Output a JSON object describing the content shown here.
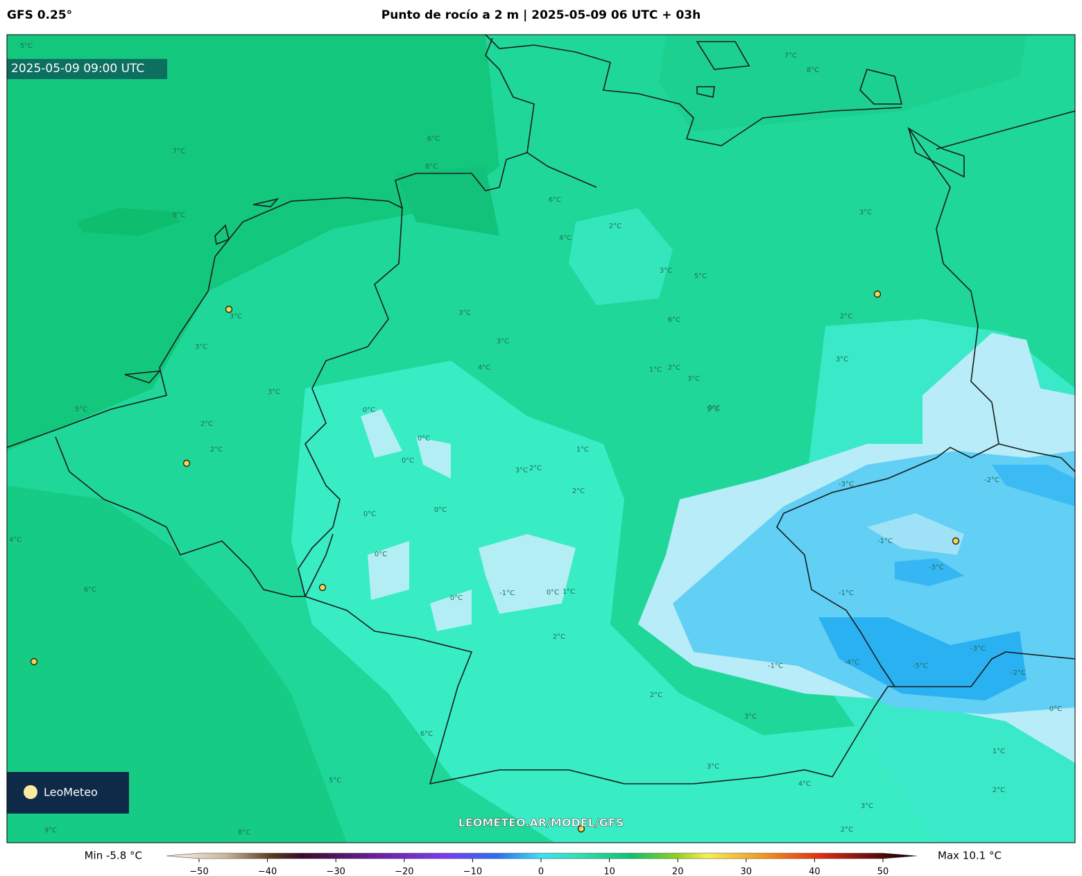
{
  "header": {
    "left": "GFS 0.25°",
    "title": "Punto de rocío a 2 m | 2025-05-09 06 UTC + 03h"
  },
  "map": {
    "valid_time": "2025-05-09 09:00 UTC",
    "watermark": "LEOMETEO.AR/MODEL/GFS",
    "logo": "LeoMeteo",
    "contour_labels": [
      "5°C",
      "7°C",
      "8°C",
      "6°C",
      "7°C",
      "8°C",
      "8°C",
      "6°C",
      "4°C",
      "2°C",
      "3°C",
      "5°C",
      "3°C",
      "2°C",
      "3°C",
      "3°C",
      "3°C",
      "3°C",
      "4°C",
      "6°C",
      "1°C",
      "2°C",
      "3°C",
      "5°C",
      "3°C",
      "3°C",
      "2°C",
      "0°C",
      "2°C",
      "5°C",
      "0°C",
      "0°C",
      "0°C",
      "1°C",
      "2°C",
      "3°C",
      "2°C",
      "0°C",
      "0°C",
      "0°C",
      "-1°C",
      "0°C",
      "1°C",
      "2°C",
      "-3°C",
      "-2°C",
      "-1°C",
      "-3°C",
      "-1°C",
      "-4°C",
      "-5°C",
      "-3°C",
      "-2°C",
      "-1°C",
      "0°C",
      "1°C",
      "2°C",
      "3°C",
      "4°C",
      "2°C",
      "3°C",
      "3°C",
      "2°C",
      "6°C",
      "6°C",
      "4°C",
      "5°C",
      "5°C",
      "9°C",
      "8°C"
    ]
  },
  "colorbar": {
    "min_label": "Min -5.8 °C",
    "max_label": "Max 10.1 °C",
    "lim": [
      -50,
      50
    ],
    "ticks": [
      {
        "value": -50,
        "label": "−50"
      },
      {
        "value": -40,
        "label": "−40"
      },
      {
        "value": -30,
        "label": "−30"
      },
      {
        "value": -20,
        "label": "−20"
      },
      {
        "value": -10,
        "label": "−10"
      },
      0,
      10,
      20,
      30,
      40,
      50
    ]
  }
}
